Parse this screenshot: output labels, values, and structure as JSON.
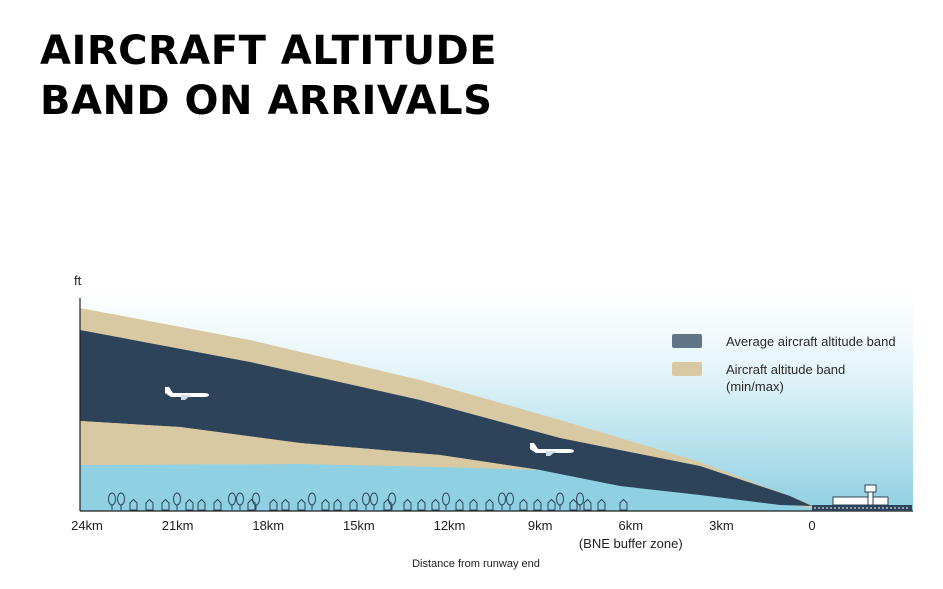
{
  "title_lines": [
    "AIRCRAFT ALTITUDE",
    "BAND ON ARRIVALS"
  ],
  "chart_data": {
    "type": "area",
    "title": "AIRCRAFT ALTITUDE BAND ON ARRIVALS",
    "ylabel": "ft",
    "xlabel": "Distance from runway end",
    "x_unit": "km",
    "xlim": [
      24,
      -3.3
    ],
    "x_ticks": [
      {
        "value": 24,
        "label": "24km"
      },
      {
        "value": 21,
        "label": "21km"
      },
      {
        "value": 18,
        "label": "18km"
      },
      {
        "value": 15,
        "label": "15km"
      },
      {
        "value": 12,
        "label": "12km"
      },
      {
        "value": 9,
        "label": "9km"
      },
      {
        "value": 6,
        "label": "6km",
        "sublabel": "(BNE buffer zone)"
      },
      {
        "value": 3,
        "label": "3km"
      },
      {
        "value": 0,
        "label": "0"
      }
    ],
    "legend_position": "right",
    "series": [
      {
        "name": "Average aircraft altitude band",
        "color": "#2c4359",
        "legend_color": "#607587"
      },
      {
        "name": "Aircraft altitude band",
        "name_line2": "(min/max)",
        "color": "#d8c9a3",
        "legend_color": "#d8c9a3"
      }
    ],
    "band_colors": {
      "sky_top": "#ffffff",
      "sky_bottom": "#8fd0e2"
    }
  }
}
